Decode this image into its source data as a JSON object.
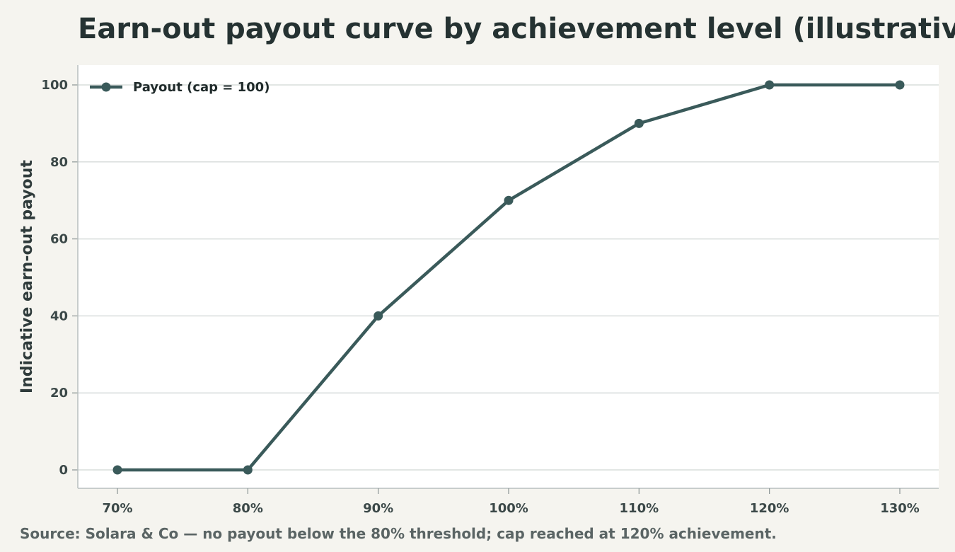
{
  "chart_data": {
    "type": "line",
    "title": "Earn-out payout curve by achievement level (illustrative)",
    "xlabel": "",
    "ylabel": "Indicative earn-out payout",
    "categories": [
      "70%",
      "80%",
      "90%",
      "100%",
      "110%",
      "120%",
      "130%"
    ],
    "series": [
      {
        "name": "Payout (cap = 100)",
        "values": [
          0,
          0,
          40,
          70,
          90,
          100,
          100
        ]
      }
    ],
    "ylim": [
      0,
      100
    ],
    "yticks": [
      "0",
      "20",
      "40",
      "60",
      "80",
      "100"
    ],
    "grid": "horizontal",
    "legend": "top-left",
    "colors": {
      "series": "#3a5a5a",
      "grid": "#d9dddc",
      "plot_bg": "#ffffff",
      "page_bg": "#f5f4ef"
    }
  },
  "source": "Source: Solara & Co — no payout below the 80% threshold; cap reached at 120% achievement."
}
